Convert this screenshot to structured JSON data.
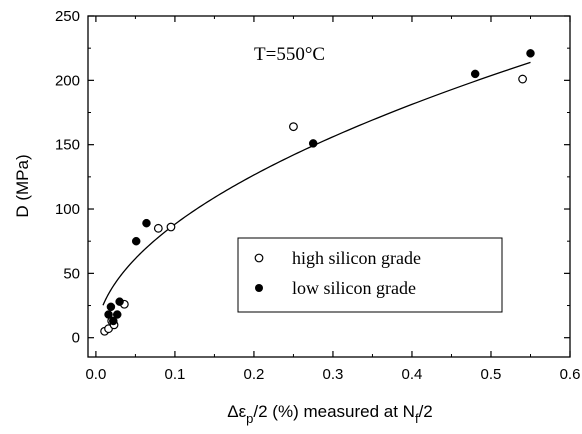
{
  "chart_data": {
    "type": "scatter",
    "annotation": "T=550°C",
    "ylabel": "D (MPa)",
    "xlabel_parts": {
      "delta_eps": "Δε",
      "sub_p": "p",
      "mid": "/2 (%) measured at N",
      "sub_f": "f",
      "tail": "/2"
    },
    "xlim": [
      -0.01,
      0.6
    ],
    "ylim": [
      -15,
      250
    ],
    "x_ticks": [
      0.0,
      0.1,
      0.2,
      0.3,
      0.4,
      0.5,
      0.6
    ],
    "x_tick_labels": [
      "0.0",
      "0.1",
      "0.2",
      "0.3",
      "0.4",
      "0.5",
      "0.6"
    ],
    "y_ticks": [
      0,
      50,
      100,
      150,
      200,
      250
    ],
    "y_tick_labels": [
      "0",
      "50",
      "100",
      "150",
      "200",
      "250"
    ],
    "legend_position": "lower-right",
    "series": [
      {
        "name": "high silicon grade",
        "marker": "open-circle",
        "points": [
          {
            "x": 0.011,
            "y": 5
          },
          {
            "x": 0.016,
            "y": 7
          },
          {
            "x": 0.02,
            "y": 13
          },
          {
            "x": 0.023,
            "y": 10
          },
          {
            "x": 0.036,
            "y": 26
          },
          {
            "x": 0.079,
            "y": 85
          },
          {
            "x": 0.095,
            "y": 86
          },
          {
            "x": 0.25,
            "y": 164
          },
          {
            "x": 0.54,
            "y": 201
          }
        ]
      },
      {
        "name": "low silicon grade",
        "marker": "filled-circle",
        "points": [
          {
            "x": 0.016,
            "y": 18
          },
          {
            "x": 0.019,
            "y": 24
          },
          {
            "x": 0.022,
            "y": 13
          },
          {
            "x": 0.027,
            "y": 18
          },
          {
            "x": 0.03,
            "y": 28
          },
          {
            "x": 0.051,
            "y": 75
          },
          {
            "x": 0.064,
            "y": 89
          },
          {
            "x": 0.275,
            "y": 151
          },
          {
            "x": 0.48,
            "y": 205
          },
          {
            "x": 0.55,
            "y": 221
          }
        ]
      }
    ],
    "fit_curve": {
      "type": "power",
      "coefficient": 292,
      "exponent": 0.52,
      "x_range": [
        0.009,
        0.55
      ]
    }
  }
}
